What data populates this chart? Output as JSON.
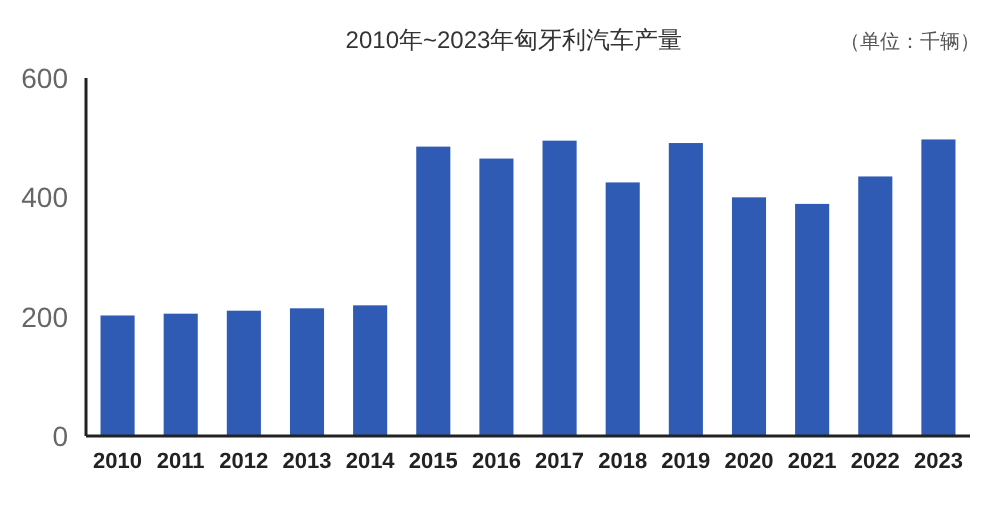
{
  "chart_data": {
    "type": "bar",
    "title": "2010年~2023年匈牙利汽车产量",
    "annotations": [
      "（单位：千辆）"
    ],
    "categories": [
      "2010",
      "2011",
      "2012",
      "2013",
      "2014",
      "2015",
      "2016",
      "2017",
      "2018",
      "2019",
      "2020",
      "2021",
      "2022",
      "2023"
    ],
    "values": [
      202,
      205,
      210,
      214,
      219,
      485,
      465,
      495,
      425,
      491,
      400,
      389,
      435,
      497
    ],
    "color": "#2f5bb5",
    "ylim": [
      0,
      600
    ],
    "yticks": [
      0,
      200,
      400,
      600
    ],
    "grid": false
  }
}
